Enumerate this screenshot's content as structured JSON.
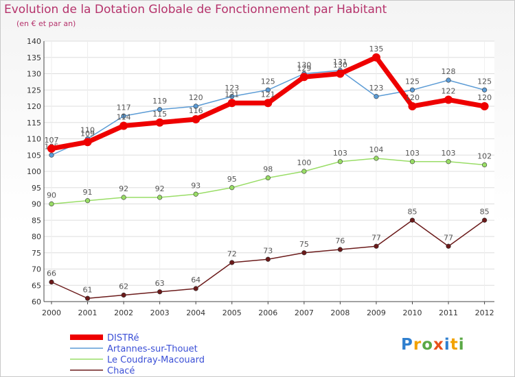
{
  "chart_data": {
    "type": "line",
    "title": "Evolution de la Dotation Globale de Fonctionnement par Habitant",
    "subtitle": "(en € et par an)",
    "x": [
      "2000",
      "2001",
      "2002",
      "2003",
      "2004",
      "2005",
      "2006",
      "2007",
      "2008",
      "2009",
      "2010",
      "2011",
      "2012"
    ],
    "ylim": [
      60,
      140
    ],
    "yticks": [
      60,
      65,
      70,
      75,
      80,
      85,
      90,
      95,
      100,
      105,
      110,
      115,
      120,
      125,
      130,
      135,
      140
    ],
    "series": [
      {
        "name": "DISTRé",
        "color": "#ee0000",
        "values": [
          107,
          109,
          114,
          115,
          116,
          121,
          121,
          129,
          130,
          135,
          120,
          122,
          120
        ],
        "labels": [
          "107",
          "109",
          "114",
          "115",
          "116",
          "121",
          "121",
          "129",
          "130",
          "135",
          "120",
          "122",
          "120"
        ]
      },
      {
        "name": "Artannes-sur-Thouet",
        "color": "#5b9bd5",
        "values": [
          105,
          110,
          117,
          119,
          120,
          123,
          125,
          130,
          131,
          123,
          125,
          128,
          125
        ],
        "labels": [
          "105",
          "110",
          "117",
          "119",
          "120",
          "123",
          "125",
          "130",
          "131",
          "123",
          "125",
          "128",
          "125"
        ]
      },
      {
        "name": "Le Coudray-Macouard",
        "color": "#99dd66",
        "values": [
          90,
          91,
          92,
          92,
          93,
          95,
          98,
          100,
          103,
          104,
          103,
          103,
          102
        ],
        "labels": [
          "90",
          "91",
          "92",
          "92",
          "93",
          "95",
          "98",
          "100",
          "103",
          "104",
          "103",
          "103",
          "102"
        ]
      },
      {
        "name": "Chacé",
        "color": "#6b1a1a",
        "values": [
          66,
          61,
          62,
          63,
          64,
          72,
          73,
          75,
          76,
          77,
          85,
          77,
          85
        ],
        "labels": [
          "66",
          "61",
          "62",
          "63",
          "64",
          "72",
          "73",
          "75",
          "76",
          "77",
          "85",
          "77",
          "85"
        ]
      }
    ]
  },
  "branding": {
    "logo_letters": [
      "P",
      "r",
      "o",
      "x",
      "i",
      "t",
      "i"
    ],
    "logo_colors": [
      "#2f7fcf",
      "#f2a200",
      "#5aa845",
      "#e8501b",
      "#2f7fcf",
      "#f2a200",
      "#5aa845"
    ]
  }
}
